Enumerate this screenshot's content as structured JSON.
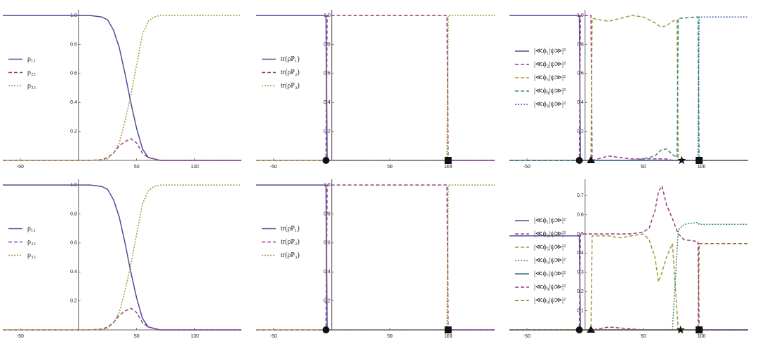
{
  "chart_data": [
    {
      "type": "line",
      "x": [
        -65,
        0,
        10,
        20,
        25,
        30,
        35,
        40,
        45,
        50,
        55,
        60,
        65,
        70,
        80,
        100,
        140
      ],
      "series": [
        {
          "name": "ρ₁₁",
          "color": "#4b4b9e",
          "style": "solid",
          "values": [
            1,
            1,
            1,
            0.99,
            0.97,
            0.9,
            0.78,
            0.6,
            0.4,
            0.22,
            0.08,
            0.02,
            0.01,
            0,
            0,
            0,
            0
          ]
        },
        {
          "name": "ρ₂₂",
          "color": "#9c3c80",
          "style": "dashed",
          "values": [
            0,
            0,
            0,
            0.005,
            0.02,
            0.05,
            0.1,
            0.13,
            0.15,
            0.12,
            0.05,
            0.02,
            0.01,
            0,
            0,
            0,
            0
          ]
        },
        {
          "name": "ρ₃₃",
          "color": "#a09a32",
          "style": "dotted",
          "values": [
            0,
            0,
            0,
            0.005,
            0.01,
            0.05,
            0.12,
            0.27,
            0.45,
            0.66,
            0.87,
            0.96,
            0.99,
            1,
            1,
            1,
            1
          ]
        }
      ],
      "xlim": [
        -65,
        140
      ],
      "xticks": [
        -50,
        50,
        100
      ],
      "ylim": [
        0,
        1.02
      ],
      "yticks": [
        0.2,
        0.4,
        0.6,
        0.8,
        {
          "value": 1,
          "label": "1.0"
        }
      ],
      "legend": "center-left"
    },
    {
      "type": "line",
      "x": [
        -65,
        -5,
        -4,
        99,
        100,
        140
      ],
      "series": [
        {
          "name": "tr(ρP₁)",
          "color": "#4b4b9e",
          "style": "solid",
          "values": [
            1,
            1,
            0,
            0,
            0,
            0
          ]
        },
        {
          "name": "tr(ρP₂)",
          "color": "#9c3c80",
          "style": "dashed",
          "values": [
            0,
            0,
            1,
            1,
            0,
            0
          ]
        },
        {
          "name": "tr(ρP₃)",
          "color": "#a09a32",
          "style": "dotted",
          "values": [
            0,
            0,
            0,
            0,
            1,
            1
          ]
        }
      ],
      "xlim": [
        -65,
        140
      ],
      "xticks": [
        -50,
        50,
        100
      ],
      "ylim": [
        0,
        1.02
      ],
      "yticks": [
        0.2,
        0.4,
        0.6,
        0.8,
        {
          "value": 1,
          "label": "1.0"
        }
      ],
      "legend": "center-left",
      "markers": [
        {
          "x": -5,
          "y": 0,
          "shape": "circle"
        },
        {
          "x": 100,
          "y": 0,
          "shape": "square"
        }
      ]
    },
    {
      "type": "line",
      "x": [
        -65,
        -5,
        -4,
        5,
        6,
        20,
        30,
        40,
        50,
        60,
        65,
        70,
        75,
        79,
        80,
        97,
        98,
        140
      ],
      "series": [
        {
          "name": "|≪ϕ₁|ψ≫|²",
          "color": "#4b4b9e",
          "style": "solid",
          "values": [
            1,
            1,
            0,
            0,
            0,
            0,
            0,
            0,
            0,
            0,
            0,
            0,
            0,
            0,
            0,
            0,
            0,
            0
          ]
        },
        {
          "name": "|≪ϕ₂|ψ≫|²",
          "color": "#9c3c80",
          "style": "dashed",
          "values": [
            0,
            0,
            1,
            1,
            0,
            0.03,
            0.02,
            0.01,
            0.01,
            0.01,
            0.01,
            0.01,
            0,
            0,
            0,
            0,
            0,
            0
          ]
        },
        {
          "name": "|≪ϕ₅|ψ≫|²",
          "color": "#a09a32",
          "style": "dashed",
          "values": [
            0,
            0,
            0,
            0,
            0.98,
            0.96,
            0.98,
            1,
            0.99,
            0.95,
            0.92,
            0.93,
            0.96,
            0.97,
            0,
            0,
            0,
            0
          ]
        },
        {
          "name": "|≪ϕ₈|ψ≫|²",
          "color": "#3a8c6a",
          "style": "dashed",
          "values": [
            0,
            0,
            0,
            0,
            0,
            0,
            0,
            0,
            0.01,
            0.03,
            0.07,
            0.08,
            0.04,
            0.02,
            0.98,
            0.99,
            0,
            0
          ]
        },
        {
          "name": "|≪ϕ₉|ψ≫|²",
          "color": "#3a5ea2",
          "style": "dotted",
          "values": [
            0,
            0,
            0,
            0,
            0,
            0,
            0,
            0,
            0,
            0,
            0,
            0,
            0,
            0,
            0,
            0,
            0.99,
            0.99
          ]
        }
      ],
      "xlim": [
        -65,
        140
      ],
      "xticks": [
        -50,
        50,
        100
      ],
      "ylim": [
        0,
        1.02
      ],
      "yticks": [
        0.2,
        0.4,
        0.6,
        0.8,
        {
          "value": 1,
          "label": "1.0"
        }
      ],
      "legend": "upper-left",
      "markers": [
        {
          "x": -5,
          "y": 0,
          "shape": "circle"
        },
        {
          "x": 5,
          "y": 0,
          "shape": "triangle"
        },
        {
          "x": 83,
          "y": 0,
          "shape": "star"
        },
        {
          "x": 98,
          "y": 0,
          "shape": "square"
        }
      ]
    },
    {
      "type": "line",
      "x": [
        -65,
        0,
        10,
        20,
        25,
        30,
        35,
        40,
        45,
        50,
        55,
        60,
        65,
        70,
        80,
        100,
        140
      ],
      "series": [
        {
          "name": "ρ₁₁",
          "color": "#4b4b9e",
          "style": "solid",
          "values": [
            1,
            1,
            1,
            0.99,
            0.97,
            0.9,
            0.78,
            0.6,
            0.4,
            0.22,
            0.08,
            0.02,
            0.01,
            0,
            0,
            0,
            0
          ]
        },
        {
          "name": "ρ₂₂",
          "color": "#9c3c80",
          "style": "dashed",
          "values": [
            0,
            0,
            0,
            0.005,
            0.02,
            0.05,
            0.1,
            0.13,
            0.15,
            0.12,
            0.05,
            0.02,
            0.01,
            0,
            0,
            0,
            0
          ]
        },
        {
          "name": "ρ₃₃",
          "color": "#a09a32",
          "style": "dotted",
          "values": [
            0,
            0,
            0,
            0.005,
            0.01,
            0.05,
            0.12,
            0.27,
            0.45,
            0.66,
            0.87,
            0.96,
            0.99,
            1,
            1,
            1,
            1
          ]
        }
      ],
      "xlim": [
        -65,
        140
      ],
      "xticks": [
        -50,
        50,
        100
      ],
      "ylim": [
        0,
        1.02
      ],
      "yticks": [
        0.2,
        0.4,
        0.6,
        0.8,
        {
          "value": 1,
          "label": "1.0"
        }
      ],
      "legend": "center-left"
    },
    {
      "type": "line",
      "x": [
        -65,
        -5,
        -4,
        99,
        100,
        140
      ],
      "series": [
        {
          "name": "tr(ρP₁)",
          "color": "#4b4b9e",
          "style": "solid",
          "values": [
            1,
            1,
            0,
            0,
            0,
            0
          ]
        },
        {
          "name": "tr(ρP₂)",
          "color": "#9c3c80",
          "style": "dashed",
          "values": [
            0,
            0,
            1,
            1,
            0,
            0
          ]
        },
        {
          "name": "tr(ρP₃)",
          "color": "#a09a32",
          "style": "dotted",
          "values": [
            0,
            0,
            0,
            0,
            1,
            1
          ]
        }
      ],
      "xlim": [
        -65,
        140
      ],
      "xticks": [
        -50,
        50,
        100
      ],
      "ylim": [
        0,
        1.02
      ],
      "yticks": [
        0.2,
        0.4,
        0.6,
        0.8,
        {
          "value": 1,
          "label": "1.0"
        }
      ],
      "legend": "center-left",
      "markers": [
        {
          "x": -5,
          "y": 0,
          "shape": "circle"
        },
        {
          "x": 100,
          "y": 0,
          "shape": "square"
        }
      ]
    },
    {
      "type": "line",
      "x": [
        -65,
        -5,
        -4,
        5,
        6,
        20,
        30,
        40,
        50,
        55,
        60,
        63,
        66,
        70,
        75,
        80,
        85,
        97,
        98,
        140
      ],
      "series": [
        {
          "name": "|≪ϕ₁|ψ≫|²",
          "color": "#4b4b9e",
          "style": "solid",
          "values": [
            0.49,
            0.49,
            0,
            0,
            0,
            0,
            0,
            0,
            0,
            0,
            0,
            0,
            0,
            0,
            0,
            0,
            0,
            0,
            0,
            0
          ]
        },
        {
          "name": "|≪ϕ₂|ψ≫|²",
          "color": "#9c3c80",
          "style": "dashed",
          "values": [
            0,
            0,
            0.5,
            0.5,
            0.5,
            0.5,
            0.5,
            0.5,
            0.51,
            0.53,
            0.62,
            0.72,
            0.75,
            0.65,
            0.58,
            0.5,
            0.47,
            0.46,
            0,
            0
          ]
        },
        {
          "name": "|≪ϕ₅|ψ≫|²",
          "color": "#a09a32",
          "style": "dashed",
          "values": [
            0,
            0,
            0,
            0,
            0.49,
            0.49,
            0.48,
            0.49,
            0.5,
            0.47,
            0.38,
            0.25,
            0.3,
            0.38,
            0.45,
            0,
            0,
            0,
            0,
            0
          ]
        },
        {
          "name": "|≪ϕ₆|ψ≫|²",
          "color": "#3a8c6a",
          "style": "dotted",
          "values": [
            0,
            0,
            0,
            0,
            0,
            0,
            0,
            0,
            0,
            0,
            0,
            0,
            0,
            0,
            0,
            0.52,
            0.55,
            0.56,
            0.55,
            0.55
          ]
        },
        {
          "name": "|≪ϕ₇|ψ≫|²",
          "color": "#2f6a7c",
          "style": "solid",
          "values": [
            0,
            0,
            0,
            0,
            0,
            0,
            0,
            0,
            0,
            0,
            0,
            0,
            0,
            0,
            0,
            0,
            0,
            0,
            0,
            0
          ]
        },
        {
          "name": "|≪ϕ₈|ψ≫|²",
          "color": "#9c3c80",
          "style": "dashed",
          "values": [
            0,
            0,
            0,
            0,
            0,
            0.015,
            0.01,
            0.005,
            0,
            0,
            0,
            0,
            0,
            0,
            0,
            0,
            0,
            0,
            0,
            0
          ]
        },
        {
          "name": "|≪ϕ₉|ψ≫|²",
          "color": "#8a6a32",
          "style": "dashed",
          "values": [
            0,
            0,
            0,
            0,
            0,
            0,
            0,
            0,
            0,
            0,
            0,
            0,
            0,
            0,
            0,
            0,
            0,
            0,
            0.45,
            0.45
          ]
        }
      ],
      "xlim": [
        -65,
        140
      ],
      "xticks": [
        -50,
        50,
        100
      ],
      "ylim": [
        0,
        0.77
      ],
      "yticks": [
        0.1,
        0.2,
        0.3,
        0.4,
        0.5,
        0.6,
        0.7
      ],
      "legend": "upper-left",
      "markers": [
        {
          "x": -5,
          "y": 0,
          "shape": "circle"
        },
        {
          "x": 5,
          "y": 0,
          "shape": "triangle"
        },
        {
          "x": 82,
          "y": 0,
          "shape": "star"
        },
        {
          "x": 98,
          "y": 0,
          "shape": "square"
        }
      ]
    }
  ]
}
